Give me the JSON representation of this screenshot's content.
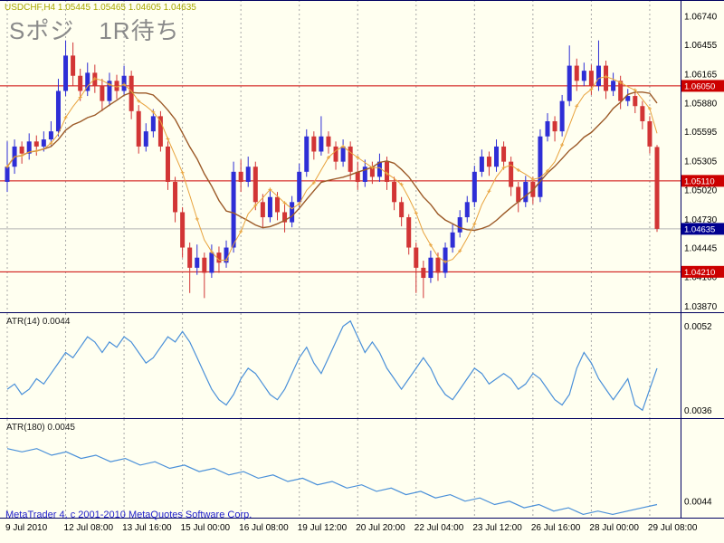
{
  "annotation": {
    "text": "Sポジ　1R待ち"
  },
  "footer": {
    "copyright": "MetaTrader 4, c 2001-2010 MetaQuotes Software Corp."
  },
  "colors": {
    "background": "#FFFFF0",
    "grid": "#A8A8A8",
    "bull": "#2E2ED6",
    "bear": "#D23535",
    "ma_fast": "#E8A33D",
    "ma_slow": "#9C5A28",
    "level_line": "#CC0000",
    "current_price_bg": "#000090",
    "indicator_line": "#4A90D9",
    "separator": "#000060",
    "axis_text": "#000000",
    "title_text": "#A8A800",
    "annotation_text": "#8A8A8A",
    "indicator_label_text": "#1A1A1A",
    "copyright_text": "#2222CC"
  },
  "chart_data": {
    "type": "candlestick",
    "title": "USDCHF,H4 1.05445 1.05465 1.04605 1.04635",
    "symbol": "USDCHF",
    "timeframe": "H4",
    "current_bar": {
      "open": "1.05445",
      "high": "1.05465",
      "low": "1.04605",
      "close": "1.04635"
    },
    "time_labels": [
      "9 Jul 2010",
      "12 Jul 08:00",
      "13 Jul 16:00",
      "15 Jul 00:00",
      "16 Jul 08:00",
      "19 Jul 12:00",
      "20 Jul 20:00",
      "22 Jul 04:00",
      "23 Jul 12:00",
      "26 Jul 16:00",
      "28 Jul 00:00",
      "29 Jul 08:00"
    ],
    "price_axis_labels": [
      "1.06740",
      "1.06455",
      "1.06165",
      "1.05880",
      "1.05595",
      "1.05305",
      "1.05020",
      "1.04730",
      "1.04445",
      "1.04160",
      "1.03870"
    ],
    "price_range": {
      "top": 1.069,
      "bottom": 1.0381
    },
    "horizontal_levels": [
      {
        "price": 1.0605,
        "label": "1.06050"
      },
      {
        "price": 1.0511,
        "label": "1.05110"
      },
      {
        "price": 1.0421,
        "label": "1.04210"
      }
    ],
    "current_price": {
      "value": 1.04635,
      "label": "1.04635"
    },
    "moving_averages": [
      {
        "name": "ma-fast",
        "period": 6
      },
      {
        "name": "ma-slow",
        "period": 13
      }
    ],
    "candles": [
      [
        1.051,
        1.055,
        1.05,
        1.0525
      ],
      [
        1.0525,
        1.0552,
        1.0518,
        1.0545
      ],
      [
        1.0545,
        1.055,
        1.0528,
        1.0538
      ],
      [
        1.0538,
        1.0558,
        1.0532,
        1.055
      ],
      [
        1.055,
        1.0556,
        1.0536,
        1.0545
      ],
      [
        1.0545,
        1.056,
        1.054,
        1.0552
      ],
      [
        1.0552,
        1.057,
        1.0546,
        1.056
      ],
      [
        1.056,
        1.0612,
        1.0555,
        1.06
      ],
      [
        1.06,
        1.065,
        1.0595,
        1.0635
      ],
      [
        1.0635,
        1.0648,
        1.0605,
        1.0615
      ],
      [
        1.0615,
        1.0622,
        1.059,
        1.06
      ],
      [
        1.06,
        1.0628,
        1.0595,
        1.0618
      ],
      [
        1.0618,
        1.0626,
        1.0598,
        1.0605
      ],
      [
        1.0605,
        1.0612,
        1.058,
        1.059
      ],
      [
        1.059,
        1.0618,
        1.0585,
        1.061
      ],
      [
        1.061,
        1.0616,
        1.0592,
        1.06
      ],
      [
        1.06,
        1.0625,
        1.0596,
        1.0615
      ],
      [
        1.0615,
        1.062,
        1.0572,
        1.058
      ],
      [
        1.058,
        1.0586,
        1.0538,
        1.0545
      ],
      [
        1.0545,
        1.0568,
        1.054,
        1.056
      ],
      [
        1.056,
        1.0582,
        1.0554,
        1.0575
      ],
      [
        1.0575,
        1.058,
        1.054,
        1.0545
      ],
      [
        1.0545,
        1.055,
        1.0502,
        1.051
      ],
      [
        1.051,
        1.0515,
        1.047,
        1.048
      ],
      [
        1.048,
        1.0485,
        1.0435,
        1.0445
      ],
      [
        1.0445,
        1.045,
        1.04,
        1.0425
      ],
      [
        1.0425,
        1.0448,
        1.0418,
        1.0435
      ],
      [
        1.0435,
        1.044,
        1.0395,
        1.042
      ],
      [
        1.042,
        1.0448,
        1.0415,
        1.044
      ],
      [
        1.044,
        1.0446,
        1.042,
        1.043
      ],
      [
        1.043,
        1.0452,
        1.0425,
        1.0445
      ],
      [
        1.0445,
        1.053,
        1.044,
        1.052
      ],
      [
        1.052,
        1.0532,
        1.05,
        1.051
      ],
      [
        1.051,
        1.0535,
        1.0505,
        1.0525
      ],
      [
        1.0525,
        1.053,
        1.0482,
        1.049
      ],
      [
        1.049,
        1.0498,
        1.0465,
        1.0475
      ],
      [
        1.0475,
        1.0502,
        1.047,
        1.0495
      ],
      [
        1.0495,
        1.05,
        1.0472,
        1.048
      ],
      [
        1.048,
        1.0488,
        1.046,
        1.047
      ],
      [
        1.047,
        1.0496,
        1.0465,
        1.049
      ],
      [
        1.049,
        1.0528,
        1.0485,
        1.052
      ],
      [
        1.052,
        1.0562,
        1.0515,
        1.0555
      ],
      [
        1.0555,
        1.056,
        1.0532,
        1.054
      ],
      [
        1.054,
        1.0575,
        1.0536,
        1.0555
      ],
      [
        1.0555,
        1.056,
        1.0538,
        1.0545
      ],
      [
        1.0545,
        1.055,
        1.0522,
        1.053
      ],
      [
        1.053,
        1.0552,
        1.0525,
        1.0545
      ],
      [
        1.0545,
        1.055,
        1.0512,
        1.052
      ],
      [
        1.052,
        1.053,
        1.0502,
        1.051
      ],
      [
        1.051,
        1.0532,
        1.0505,
        1.0525
      ],
      [
        1.0525,
        1.053,
        1.0508,
        1.0515
      ],
      [
        1.0515,
        1.0538,
        1.051,
        1.053
      ],
      [
        1.053,
        1.0535,
        1.0502,
        1.051
      ],
      [
        1.051,
        1.0515,
        1.0482,
        1.049
      ],
      [
        1.049,
        1.0495,
        1.0466,
        1.0475
      ],
      [
        1.0475,
        1.0478,
        1.0438,
        1.0445
      ],
      [
        1.0445,
        1.045,
        1.04,
        1.0425
      ],
      [
        1.0425,
        1.0432,
        1.0395,
        1.0415
      ],
      [
        1.0415,
        1.0442,
        1.041,
        1.0435
      ],
      [
        1.0435,
        1.044,
        1.0412,
        1.042
      ],
      [
        1.042,
        1.045,
        1.0415,
        1.0445
      ],
      [
        1.0445,
        1.0468,
        1.044,
        1.046
      ],
      [
        1.046,
        1.0482,
        1.0455,
        1.0475
      ],
      [
        1.0475,
        1.0496,
        1.047,
        1.049
      ],
      [
        1.049,
        1.0526,
        1.0485,
        1.052
      ],
      [
        1.052,
        1.0542,
        1.0515,
        1.0535
      ],
      [
        1.0535,
        1.054,
        1.0516,
        1.0525
      ],
      [
        1.0525,
        1.0552,
        1.052,
        1.0545
      ],
      [
        1.0545,
        1.055,
        1.0522,
        1.053
      ],
      [
        1.053,
        1.0535,
        1.0496,
        1.0505
      ],
      [
        1.0505,
        1.051,
        1.048,
        1.049
      ],
      [
        1.049,
        1.0516,
        1.0485,
        1.051
      ],
      [
        1.051,
        1.0515,
        1.0488,
        1.0495
      ],
      [
        1.0495,
        1.0562,
        1.049,
        1.0555
      ],
      [
        1.0555,
        1.0578,
        1.055,
        1.057
      ],
      [
        1.057,
        1.0575,
        1.055,
        1.056
      ],
      [
        1.056,
        1.0596,
        1.0555,
        1.059
      ],
      [
        1.059,
        1.0645,
        1.0585,
        1.0625
      ],
      [
        1.0625,
        1.0632,
        1.06,
        1.061
      ],
      [
        1.061,
        1.0628,
        1.0605,
        1.062
      ],
      [
        1.062,
        1.0626,
        1.0596,
        1.0605
      ],
      [
        1.0605,
        1.065,
        1.06,
        1.0625
      ],
      [
        1.0625,
        1.063,
        1.0592,
        1.06
      ],
      [
        1.06,
        1.0618,
        1.0595,
        1.061
      ],
      [
        1.061,
        1.0615,
        1.0582,
        1.059
      ],
      [
        1.059,
        1.0602,
        1.0585,
        1.0595
      ],
      [
        1.0595,
        1.06,
        1.0578,
        1.0585
      ],
      [
        1.0585,
        1.059,
        1.0562,
        1.057
      ],
      [
        1.057,
        1.0575,
        1.0538,
        1.0545
      ],
      [
        1.05445,
        1.05465,
        1.04605,
        1.04635
      ]
    ],
    "indicators": [
      {
        "name": "ATR(14)",
        "value": "0.0044",
        "label": "ATR(14) 0.0044",
        "axis_labels": [
          "0.0052",
          "0.0036"
        ],
        "range": {
          "top": 0.00545,
          "bottom": 0.00345
        },
        "values": [
          0.004,
          0.0041,
          0.0039,
          0.004,
          0.0042,
          0.0041,
          0.0043,
          0.0045,
          0.0047,
          0.0046,
          0.0048,
          0.005,
          0.0049,
          0.0047,
          0.0049,
          0.0048,
          0.005,
          0.0049,
          0.0047,
          0.0045,
          0.0046,
          0.0048,
          0.005,
          0.0049,
          0.0051,
          0.0049,
          0.0046,
          0.0043,
          0.004,
          0.0038,
          0.0037,
          0.0039,
          0.0042,
          0.0044,
          0.0043,
          0.0041,
          0.0039,
          0.0038,
          0.004,
          0.0043,
          0.0046,
          0.0048,
          0.0045,
          0.0043,
          0.0046,
          0.0049,
          0.0052,
          0.0053,
          0.005,
          0.0047,
          0.0049,
          0.0047,
          0.0044,
          0.0042,
          0.004,
          0.0042,
          0.0044,
          0.0046,
          0.0044,
          0.0041,
          0.0039,
          0.0038,
          0.004,
          0.0042,
          0.0044,
          0.0043,
          0.0041,
          0.0042,
          0.0043,
          0.0042,
          0.004,
          0.0041,
          0.0043,
          0.0042,
          0.004,
          0.0038,
          0.0037,
          0.0039,
          0.0044,
          0.0047,
          0.0045,
          0.0042,
          0.004,
          0.0038,
          0.004,
          0.0042,
          0.0037,
          0.0036,
          0.004,
          0.0044
        ]
      },
      {
        "name": "ATR(180)",
        "value": "0.0045",
        "label": "ATR(180) 0.0045",
        "axis_labels": [
          "0.0044"
        ],
        "range": {
          "top": 0.00465,
          "bottom": 0.00435
        },
        "values": [
          0.00456,
          0.00455,
          0.00456,
          0.00454,
          0.00455,
          0.00453,
          0.00454,
          0.00452,
          0.00453,
          0.00451,
          0.00452,
          0.0045,
          0.00451,
          0.00449,
          0.0045,
          0.00448,
          0.00449,
          0.00447,
          0.00448,
          0.00446,
          0.00447,
          0.00445,
          0.00446,
          0.00444,
          0.00445,
          0.00443,
          0.00444,
          0.00442,
          0.00443,
          0.00441,
          0.00442,
          0.0044,
          0.00441,
          0.00439,
          0.0044,
          0.00438,
          0.00439,
          0.00437,
          0.00438,
          0.00436,
          0.00437,
          0.00436,
          0.00437,
          0.00438,
          0.00439
        ]
      }
    ]
  }
}
